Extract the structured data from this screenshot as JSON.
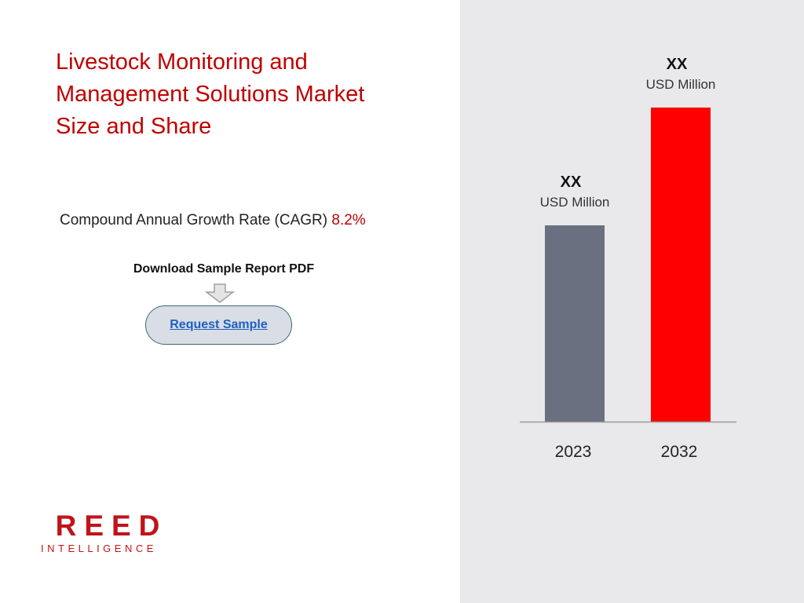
{
  "page": {
    "title_lines": [
      "Livestock Monitoring and",
      "Management Solutions Market",
      "Size and Share"
    ],
    "cagr": {
      "label": "Compound Annual Growth Rate (CAGR)",
      "value": "8.2%"
    },
    "download_label": "Download Sample Report PDF",
    "request_button_label": "Request Sample",
    "logo": {
      "main": "REED",
      "sub": "INTELLIGENCE"
    },
    "colors": {
      "accent": "#c00000",
      "panel_bg": "#e9e9eb",
      "button_bg": "#d9dde6",
      "link": "#1f5fbf"
    },
    "icons": [
      "down-arrow-icon"
    ]
  },
  "chart_data": {
    "type": "bar",
    "categories": [
      "2023",
      "2032"
    ],
    "values": [
      1,
      1.6
    ],
    "value_labels": [
      "XX",
      "XX"
    ],
    "unit_labels": [
      "USD Million",
      "USD Million"
    ],
    "colors": [
      "#6a7080",
      "#ff0000"
    ],
    "ylim": [
      0,
      2
    ],
    "grid": false,
    "legend": "none"
  }
}
